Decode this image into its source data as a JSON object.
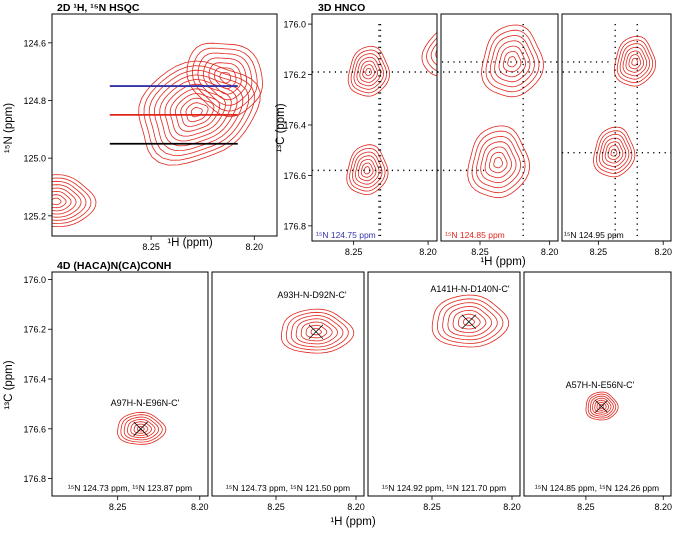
{
  "figure": {
    "panelA": {
      "title": "2D ¹H, ¹⁵N HSQC",
      "xlabel": "¹H (ppm)",
      "ylabel": "¹⁵N (ppm)",
      "xticks": [
        "8.25",
        "8.20"
      ],
      "yticks": [
        "124.6",
        "124.8",
        "125.0",
        "125.2"
      ]
    },
    "panelB": {
      "title": "3D HNCO",
      "xlabel": "¹H (ppm)",
      "ylabel": "¹³C (ppm)",
      "yticks": [
        "176.0",
        "176.2",
        "176.4",
        "176.6",
        "176.8"
      ],
      "strips": [
        {
          "label": "¹⁵N 124.75 ppm",
          "color": "#3333aa",
          "xticks": [
            "8.25",
            "8.20"
          ]
        },
        {
          "label": "¹⁵N 124.85 ppm",
          "color": "#e0261c",
          "xticks": [
            "8.25",
            "8.20"
          ]
        },
        {
          "label": "¹⁵N 124.95 ppm",
          "color": "#000000",
          "xticks": [
            "8.25",
            "8.20"
          ]
        }
      ]
    },
    "panelC": {
      "title": "4D (HACA)N(CA)CONH",
      "xlabel": "¹H (ppm)",
      "ylabel": "¹³C (ppm)",
      "yticks": [
        "176.0",
        "176.2",
        "176.4",
        "176.6",
        "176.8"
      ],
      "strips": [
        {
          "peak_label": "A97H-N-E96N-C'",
          "footer": "¹⁵N 124.73 ppm, ¹⁵N 123.87 ppm",
          "xticks": [
            "8.25",
            "8.20"
          ]
        },
        {
          "peak_label": "A93H-N-D92N-C'",
          "footer": "¹⁵N 124.73 ppm, ¹⁵N 121.50 ppm",
          "xticks": [
            "8.25",
            "8.20"
          ]
        },
        {
          "peak_label": "A141H-N-D140N-C'",
          "footer": "¹⁵N 124.92 ppm, ¹⁵N 121.70 ppm",
          "xticks": [
            "8.25",
            "8.20"
          ]
        },
        {
          "peak_label": "A57H-N-E56N-C'",
          "footer": "¹⁵N 124.85 ppm, ¹⁵N 124.26 ppm",
          "xticks": [
            "8.25",
            "8.20"
          ]
        }
      ]
    }
  },
  "colors": {
    "contour": "#e0261c",
    "slice_blue": "#3333aa",
    "slice_red": "#e0261c",
    "slice_black": "#000000",
    "frame": "#000000"
  },
  "chart_data": [
    {
      "type": "heatmap",
      "subtype": "contour",
      "title": "2D ¹H, ¹⁵N HSQC",
      "xlabel": "¹H (ppm)",
      "ylabel": "¹⁵N (ppm)",
      "xlim": [
        8.298,
        8.189
      ],
      "ylim": [
        124.5,
        125.27
      ],
      "x_inverted": true,
      "y_inverted": true,
      "xticks": [
        8.25,
        8.2
      ],
      "yticks": [
        124.6,
        124.8,
        125.0,
        125.2
      ],
      "peaks": [
        {
          "x": 8.228,
          "y": 124.84
        },
        {
          "x": 8.214,
          "y": 124.72
        },
        {
          "x": 8.296,
          "y": 125.15
        }
      ],
      "slice_lines": [
        {
          "n_ppm": 124.75,
          "color": "#3333aa",
          "x_range": [
            8.27,
            8.208
          ]
        },
        {
          "n_ppm": 124.85,
          "color": "#e0261c",
          "x_range": [
            8.27,
            8.208
          ]
        },
        {
          "n_ppm": 124.95,
          "color": "#000000",
          "x_range": [
            8.27,
            8.208
          ]
        }
      ]
    },
    {
      "type": "heatmap",
      "subtype": "contour",
      "title": "3D HNCO",
      "xlabel": "¹H (ppm)",
      "ylabel": "¹³C (ppm)",
      "xlim": [
        8.278,
        8.194
      ],
      "ylim": [
        175.96,
        176.86
      ],
      "x_inverted": true,
      "y_inverted": true,
      "xticks": [
        8.25,
        8.2
      ],
      "yticks": [
        176.0,
        176.2,
        176.4,
        176.6,
        176.8
      ],
      "strips": [
        {
          "n_ppm": 124.75,
          "peaks": [
            {
              "x": 8.24,
              "y": 176.19
            },
            {
              "x": 8.241,
              "y": 176.58
            }
          ]
        },
        {
          "n_ppm": 124.85,
          "peaks": [
            {
              "x": 8.227,
              "y": 176.15
            },
            {
              "x": 8.237,
              "y": 176.55
            }
          ]
        },
        {
          "n_ppm": 124.95,
          "peaks": [
            {
              "x": 8.222,
              "y": 176.15
            },
            {
              "x": 8.238,
              "y": 176.51
            }
          ]
        }
      ],
      "crosshair_guides": {
        "vertical_x": [
          8.233,
          8.232,
          8.219,
          8.237,
          8.22
        ],
        "horizontal_y": [
          176.19,
          176.58,
          176.15,
          176.51
        ]
      }
    },
    {
      "type": "heatmap",
      "subtype": "contour",
      "title": "4D (HACA)N(CA)CONH",
      "xlabel": "¹H (ppm)",
      "ylabel": "¹³C (ppm)",
      "xlim": [
        8.29,
        8.195
      ],
      "ylim": [
        175.97,
        176.87
      ],
      "x_inverted": true,
      "y_inverted": true,
      "xticks": [
        8.25,
        8.2
      ],
      "yticks": [
        176.0,
        176.2,
        176.4,
        176.6,
        176.8
      ],
      "peaks": [
        {
          "label": "A97H-N-E96N-C'",
          "x": 8.236,
          "y": 176.6,
          "n1_ppm": 124.73,
          "n2_ppm": 123.87
        },
        {
          "label": "A93H-N-D92N-C'",
          "x": 8.225,
          "y": 176.21,
          "n1_ppm": 124.73,
          "n2_ppm": 121.5
        },
        {
          "label": "A141H-N-D140N-C'",
          "x": 8.227,
          "y": 176.17,
          "n1_ppm": 124.92,
          "n2_ppm": 121.7
        },
        {
          "label": "A57H-N-E56N-C'",
          "x": 8.24,
          "y": 176.51,
          "n1_ppm": 124.85,
          "n2_ppm": 124.26
        }
      ]
    }
  ]
}
